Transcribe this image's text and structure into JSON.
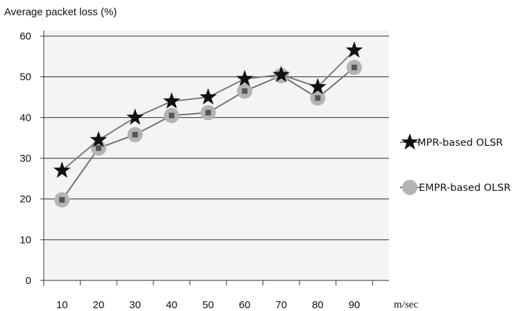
{
  "chart_data": {
    "type": "line",
    "title": "",
    "ylabel": "Average packet loss (%)",
    "xlabel": "m/sec",
    "categories": [
      10,
      20,
      30,
      40,
      50,
      60,
      70,
      80,
      90
    ],
    "ylim": [
      0,
      60
    ],
    "yticks": [
      0,
      10,
      20,
      30,
      40,
      50,
      60
    ],
    "grid": true,
    "legend_position": "right",
    "series": [
      {
        "name": "MPR-based OLSR",
        "marker": "star",
        "line_color": "#7a7a7a",
        "marker_color": "#111111",
        "values": [
          27,
          34.5,
          40,
          44,
          45,
          49.5,
          50.5,
          47.5,
          56.5
        ]
      },
      {
        "name": "EMPR-based OLSR",
        "marker": "circle",
        "line_color": "#6f6f6f",
        "marker_color": "#b4b4b4",
        "values": [
          19.8,
          32.5,
          35.8,
          40.5,
          41.2,
          46.5,
          50.3,
          44.8,
          52.3
        ]
      }
    ],
    "colors": {
      "plot_background": "#f4f4f4",
      "gridline": "#2a2a2a",
      "axis": "#333333",
      "inner_square": "#555555"
    }
  }
}
